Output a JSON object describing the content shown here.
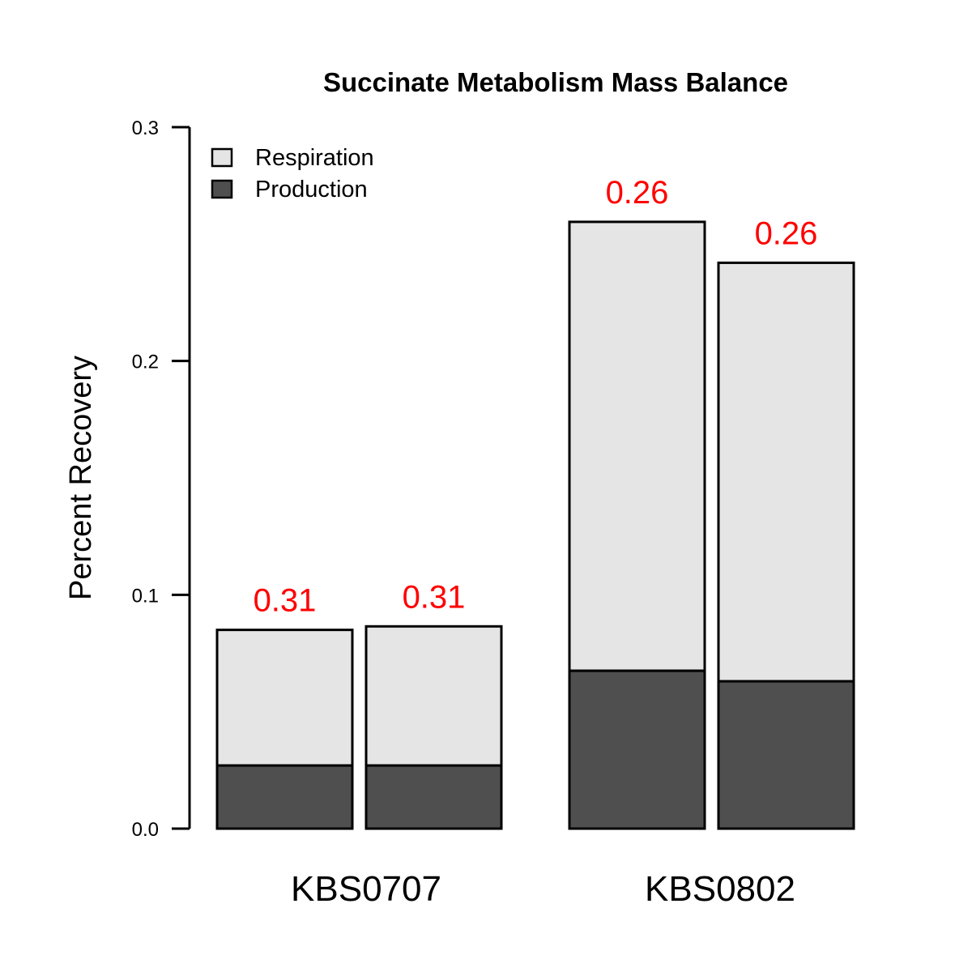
{
  "chart_data": {
    "type": "bar",
    "stacked": true,
    "title": "Succinate Metabolism Mass Balance",
    "xlabel": "",
    "ylabel": "Percent Recovery",
    "ylim": [
      0,
      0.3
    ],
    "yticks": [
      "0.0",
      "0.1",
      "0.2",
      "0.3"
    ],
    "grid": false,
    "legend_position": "top-left",
    "groups": [
      "KBS0707",
      "KBS0802"
    ],
    "bars": [
      {
        "group": "KBS0707",
        "production": 0.027,
        "respiration": 0.058,
        "label": "0.31"
      },
      {
        "group": "KBS0707",
        "production": 0.027,
        "respiration": 0.0595,
        "label": "0.31"
      },
      {
        "group": "KBS0802",
        "production": 0.0675,
        "respiration": 0.192,
        "label": "0.26"
      },
      {
        "group": "KBS0802",
        "production": 0.063,
        "respiration": 0.179,
        "label": "0.26"
      }
    ],
    "series": [
      {
        "name": "Respiration",
        "color": "#e5e5e5"
      },
      {
        "name": "Production",
        "color": "#4f4f4f"
      }
    ],
    "label_color": "#ff0000"
  }
}
